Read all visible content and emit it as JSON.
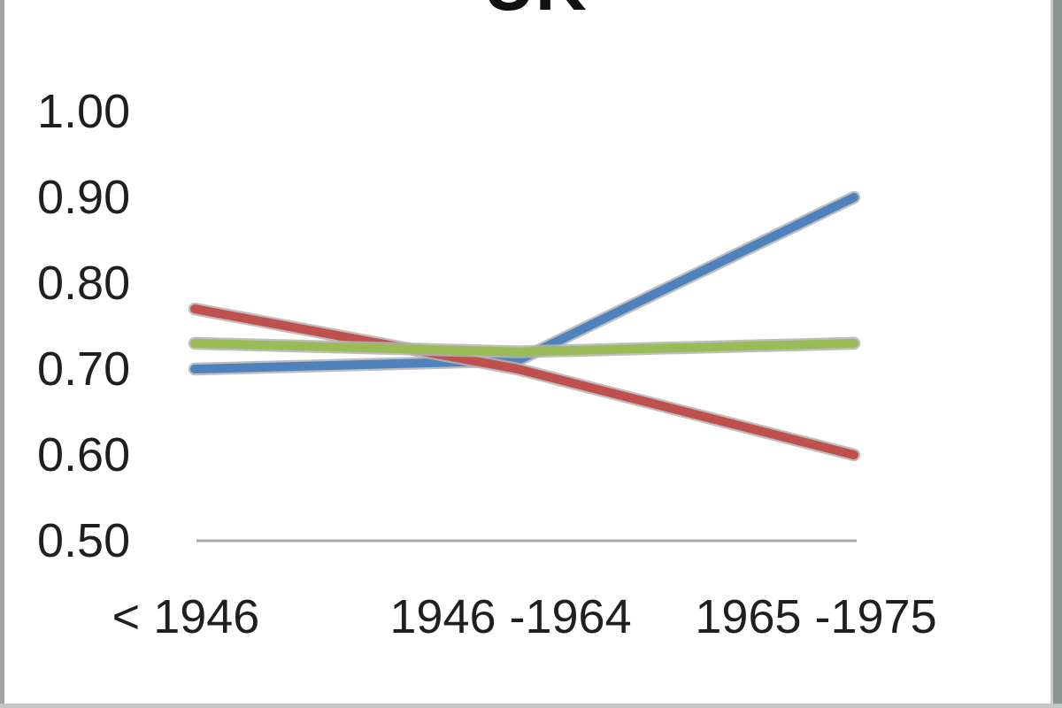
{
  "chart_data": {
    "type": "line",
    "title": "UK",
    "categories": [
      "< 1946",
      "1946 -1964",
      "1965 -1975"
    ],
    "series": [
      {
        "name": "blue",
        "color": "#4F81BD",
        "values": [
          0.7,
          0.71,
          0.9
        ]
      },
      {
        "name": "red",
        "color": "#C0504D",
        "values": [
          0.77,
          0.7,
          0.6
        ]
      },
      {
        "name": "green",
        "color": "#9BBB59",
        "values": [
          0.73,
          0.72,
          0.73
        ]
      }
    ],
    "ylim": [
      0.5,
      1.0
    ],
    "yticks": [
      "1.00",
      "0.90",
      "0.80",
      "0.70",
      "0.60",
      "0.50"
    ],
    "ytick_values": [
      1.0,
      0.9,
      0.8,
      0.7,
      0.6,
      0.5
    ],
    "grid": false,
    "legend": "none",
    "axis_color": "#A6A6A6",
    "halo_color": "#B3B3B3",
    "text_color": "#1F1F1F"
  },
  "frame": {
    "left_border_color": "#A5A5A5",
    "right_border_color": "#8A9292",
    "right_border_inner_color": "#C6CCCC",
    "bottom_border_color": "#C6C6C6"
  }
}
